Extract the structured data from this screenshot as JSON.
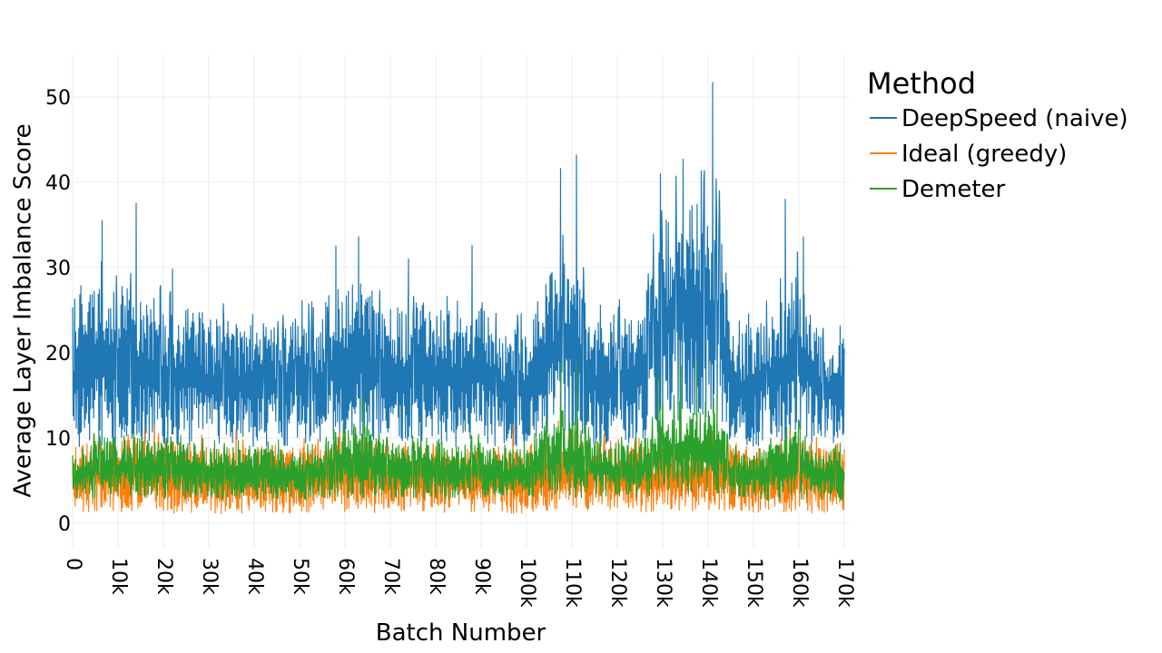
{
  "chart_data": {
    "type": "line",
    "xlabel": "Batch Number",
    "ylabel": "Average Layer Imbalance Score",
    "xlim": [
      0,
      171000
    ],
    "ylim": [
      -3,
      55
    ],
    "grid": true,
    "legend_position": "top-right",
    "x_ticks": [
      {
        "value": 0,
        "label": "0"
      },
      {
        "value": 10000,
        "label": "10k"
      },
      {
        "value": 20000,
        "label": "20k"
      },
      {
        "value": 30000,
        "label": "30k"
      },
      {
        "value": 40000,
        "label": "40k"
      },
      {
        "value": 50000,
        "label": "50k"
      },
      {
        "value": 60000,
        "label": "60k"
      },
      {
        "value": 70000,
        "label": "70k"
      },
      {
        "value": 80000,
        "label": "80k"
      },
      {
        "value": 90000,
        "label": "90k"
      },
      {
        "value": 100000,
        "label": "100k"
      },
      {
        "value": 110000,
        "label": "110k"
      },
      {
        "value": 120000,
        "label": "120k"
      },
      {
        "value": 130000,
        "label": "130k"
      },
      {
        "value": 140000,
        "label": "140k"
      },
      {
        "value": 150000,
        "label": "150k"
      },
      {
        "value": 160000,
        "label": "160k"
      },
      {
        "value": 170000,
        "label": "170k"
      }
    ],
    "y_ticks": [
      {
        "value": 0,
        "label": "0"
      },
      {
        "value": 10,
        "label": "10"
      },
      {
        "value": 20,
        "label": "20"
      },
      {
        "value": 30,
        "label": "30"
      },
      {
        "value": 40,
        "label": "40"
      },
      {
        "value": 50,
        "label": "50"
      }
    ],
    "legend_title": "Method",
    "series": [
      {
        "name": "DeepSpeed (naive)",
        "color": "#1f77b4",
        "x": [
          0,
          5000,
          10000,
          15000,
          20000,
          25000,
          30000,
          35000,
          40000,
          45000,
          50000,
          55000,
          60000,
          65000,
          70000,
          75000,
          80000,
          85000,
          90000,
          95000,
          100000,
          105000,
          110000,
          115000,
          120000,
          125000,
          130000,
          135000,
          140000,
          143000,
          145000,
          150000,
          155000,
          160000,
          165000,
          170000
        ],
        "low": [
          8,
          9,
          9,
          9,
          9,
          9,
          9,
          9,
          9,
          9,
          9,
          9,
          10,
          10,
          9,
          9,
          9,
          9,
          9,
          9,
          9,
          10,
          10,
          9,
          9,
          9,
          11,
          12,
          12,
          11,
          9,
          9,
          9,
          10,
          9,
          9
        ],
        "high": [
          24,
          29,
          28,
          27,
          26,
          25,
          24,
          24,
          23,
          23,
          24,
          24,
          29,
          28,
          24,
          26,
          25,
          25,
          26,
          22,
          23,
          30,
          32,
          24,
          24,
          25,
          36,
          38,
          38,
          36,
          22,
          23,
          26,
          30,
          22,
          22
        ],
        "peaks": [
          [
            6500,
            35.5
          ],
          [
            14000,
            37.5
          ],
          [
            22000,
            29.8
          ],
          [
            58000,
            32.5
          ],
          [
            63000,
            33.6
          ],
          [
            74000,
            31
          ],
          [
            88000,
            32.6
          ],
          [
            107500,
            41.6
          ],
          [
            111000,
            43.2
          ],
          [
            129500,
            41
          ],
          [
            134500,
            42.7
          ],
          [
            141000,
            51.7
          ],
          [
            142500,
            39
          ],
          [
            157000,
            38
          ],
          [
            161000,
            33.6
          ]
        ]
      },
      {
        "name": "Ideal (greedy)",
        "color": "#ff7f0e",
        "x": [
          0,
          10000,
          20000,
          30000,
          40000,
          50000,
          60000,
          70000,
          80000,
          90000,
          100000,
          110000,
          120000,
          130000,
          140000,
          150000,
          160000,
          170000
        ],
        "low": [
          1.2,
          1.2,
          1.1,
          1.1,
          1.2,
          1.2,
          1.3,
          1.2,
          1.2,
          1.2,
          1.1,
          1.3,
          1.2,
          1.4,
          1.5,
          1.2,
          1.2,
          1.1
        ],
        "high": [
          9,
          10,
          10,
          9,
          9,
          9,
          10,
          9,
          9,
          9,
          9,
          10,
          9,
          9,
          10,
          9,
          9,
          9
        ],
        "peaks": [
          [
            18000,
            11.5
          ],
          [
            36000,
            11
          ],
          [
            62000,
            11.3
          ],
          [
            97000,
            11.6
          ],
          [
            107000,
            12
          ],
          [
            141000,
            10.8
          ],
          [
            158000,
            11.2
          ]
        ]
      },
      {
        "name": "Demeter",
        "color": "#2ca02c",
        "x": [
          0,
          5000,
          10000,
          15000,
          20000,
          25000,
          30000,
          35000,
          40000,
          45000,
          50000,
          55000,
          60000,
          65000,
          70000,
          75000,
          80000,
          85000,
          90000,
          95000,
          100000,
          105000,
          110000,
          115000,
          120000,
          125000,
          130000,
          135000,
          140000,
          143000,
          145000,
          150000,
          155000,
          160000,
          165000,
          170000
        ],
        "low": [
          2.5,
          2.8,
          2.8,
          2.8,
          2.8,
          2.8,
          2.8,
          2.8,
          2.8,
          2.8,
          2.6,
          2.8,
          3,
          3,
          2.8,
          2.8,
          2.8,
          2.8,
          2.8,
          2.8,
          2.8,
          3,
          3,
          2.8,
          2.8,
          2.8,
          3.2,
          3.5,
          3.5,
          3.3,
          2.6,
          2.6,
          2.6,
          2.8,
          2.6,
          2.6
        ],
        "high": [
          8,
          10,
          10,
          10,
          9.5,
          9.5,
          9,
          9,
          9,
          9,
          8.5,
          9,
          11,
          11.5,
          9.5,
          9.5,
          9,
          9,
          9.5,
          8.5,
          9,
          12,
          12.5,
          9.5,
          9.5,
          9.5,
          13,
          14,
          14,
          13,
          8.5,
          8.5,
          9.5,
          11,
          8.5,
          8.5
        ],
        "peaks": [
          [
            64000,
            15
          ],
          [
            107500,
            18.7
          ],
          [
            111000,
            19
          ],
          [
            129000,
            17.5
          ],
          [
            134000,
            18.5
          ],
          [
            137500,
            19.2
          ],
          [
            142000,
            15.5
          ]
        ]
      }
    ]
  }
}
